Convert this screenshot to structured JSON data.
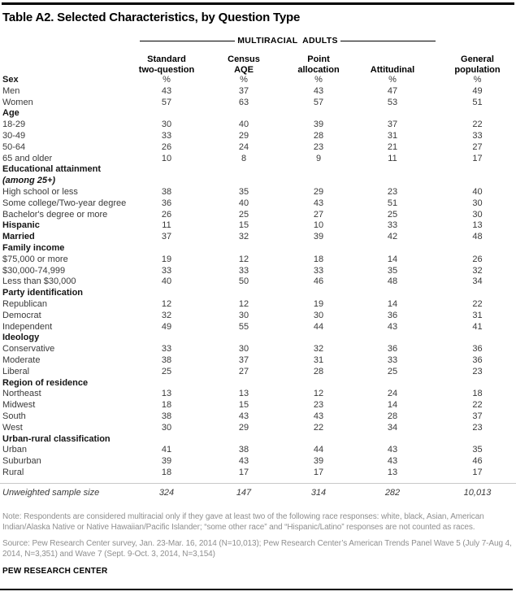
{
  "title": "Table A2. Selected Characteristics, by Question Type",
  "group_header": "MULTIRACIAL ADULTS",
  "columns": [
    "Standard\ntwo-question",
    "Census\nAQE",
    "Point\nallocation",
    "Attitudinal",
    "General\npopulation"
  ],
  "table": {
    "rows": [
      {
        "label": "Sex",
        "bold": true,
        "values": [
          "%",
          "%",
          "%",
          "%",
          "%"
        ]
      },
      {
        "label": "Men",
        "values": [
          "43",
          "37",
          "43",
          "47",
          "49"
        ]
      },
      {
        "label": "Women",
        "values": [
          "57",
          "63",
          "57",
          "53",
          "51"
        ]
      },
      {
        "label": "Age",
        "bold": true,
        "values": []
      },
      {
        "label": "18-29",
        "values": [
          "30",
          "40",
          "39",
          "37",
          "22"
        ]
      },
      {
        "label": "30-49",
        "values": [
          "33",
          "29",
          "28",
          "31",
          "33"
        ]
      },
      {
        "label": "50-64",
        "values": [
          "26",
          "24",
          "23",
          "21",
          "27"
        ]
      },
      {
        "label": "65 and older",
        "values": [
          "10",
          "8",
          "9",
          "11",
          "17"
        ]
      },
      {
        "label": "Educational attainment",
        "bold": true,
        "values": []
      },
      {
        "label": "(among 25+)",
        "bold": true,
        "italic": true,
        "values": []
      },
      {
        "label": "High school or less",
        "values": [
          "38",
          "35",
          "29",
          "23",
          "40"
        ]
      },
      {
        "label": "Some college/Two-year degree",
        "values": [
          "36",
          "40",
          "43",
          "51",
          "30"
        ]
      },
      {
        "label": "Bachelor's degree or more",
        "values": [
          "26",
          "25",
          "27",
          "25",
          "30"
        ]
      },
      {
        "label": "Hispanic",
        "bold": true,
        "values": [
          "11",
          "15",
          "10",
          "33",
          "13"
        ]
      },
      {
        "label": "Married",
        "bold": true,
        "values": [
          "37",
          "32",
          "39",
          "42",
          "48"
        ]
      },
      {
        "label": "Family income",
        "bold": true,
        "values": []
      },
      {
        "label": "$75,000 or more",
        "values": [
          "19",
          "12",
          "18",
          "14",
          "26"
        ]
      },
      {
        "label": "$30,000-74,999",
        "values": [
          "33",
          "33",
          "33",
          "35",
          "32"
        ]
      },
      {
        "label": "Less than $30,000",
        "values": [
          "40",
          "50",
          "46",
          "48",
          "34"
        ]
      },
      {
        "label": "Party identification",
        "bold": true,
        "values": []
      },
      {
        "label": "Republican",
        "values": [
          "12",
          "12",
          "19",
          "14",
          "22"
        ]
      },
      {
        "label": "Democrat",
        "values": [
          "32",
          "30",
          "30",
          "36",
          "31"
        ]
      },
      {
        "label": "Independent",
        "values": [
          "49",
          "55",
          "44",
          "43",
          "41"
        ]
      },
      {
        "label": "Ideology",
        "bold": true,
        "values": []
      },
      {
        "label": "Conservative",
        "values": [
          "33",
          "30",
          "32",
          "36",
          "36"
        ]
      },
      {
        "label": "Moderate",
        "values": [
          "38",
          "37",
          "31",
          "33",
          "36"
        ]
      },
      {
        "label": "Liberal",
        "values": [
          "25",
          "27",
          "28",
          "25",
          "23"
        ]
      },
      {
        "label": "Region of residence",
        "bold": true,
        "values": []
      },
      {
        "label": "Northeast",
        "values": [
          "13",
          "13",
          "12",
          "24",
          "18"
        ]
      },
      {
        "label": "Midwest",
        "values": [
          "18",
          "15",
          "23",
          "14",
          "22"
        ]
      },
      {
        "label": "South",
        "values": [
          "38",
          "43",
          "43",
          "28",
          "37"
        ]
      },
      {
        "label": "West",
        "values": [
          "30",
          "29",
          "22",
          "34",
          "23"
        ]
      },
      {
        "label": "Urban-rural classification",
        "bold": true,
        "values": []
      },
      {
        "label": "Urban",
        "values": [
          "41",
          "38",
          "44",
          "43",
          "35"
        ]
      },
      {
        "label": "Suburban",
        "values": [
          "39",
          "43",
          "39",
          "43",
          "46"
        ]
      },
      {
        "label": "Rural",
        "values": [
          "18",
          "17",
          "17",
          "13",
          "17"
        ]
      }
    ],
    "unweighted": {
      "label": "Unweighted sample size",
      "values": [
        "324",
        "147",
        "314",
        "282",
        "10,013"
      ]
    }
  },
  "footer": {
    "note": "Note: Respondents are considered multiracial only if they gave at least two of the following race responses: white, black, Asian, American Indian/Alaska Native or Native Hawaiian/Pacific Islander; “some other race” and “Hispanic/Latino” responses are not counted as races.",
    "source": "Source: Pew Research Center survey, Jan. 23-Mar. 16, 2014 (N=10,013);  Pew Research Center’s American Trends Panel Wave 5 (July 7-Aug 4, 2014, N=3,351) and Wave 7 (Sept. 9-Oct. 3, 2014, N=3,154)",
    "brand": "PEW RESEARCH CENTER"
  },
  "colors": {
    "rule_black": "#000000",
    "body_text": "#3a3a3a",
    "note_gray": "#8f8f8f",
    "divider_gray": "#c9c9c9"
  }
}
